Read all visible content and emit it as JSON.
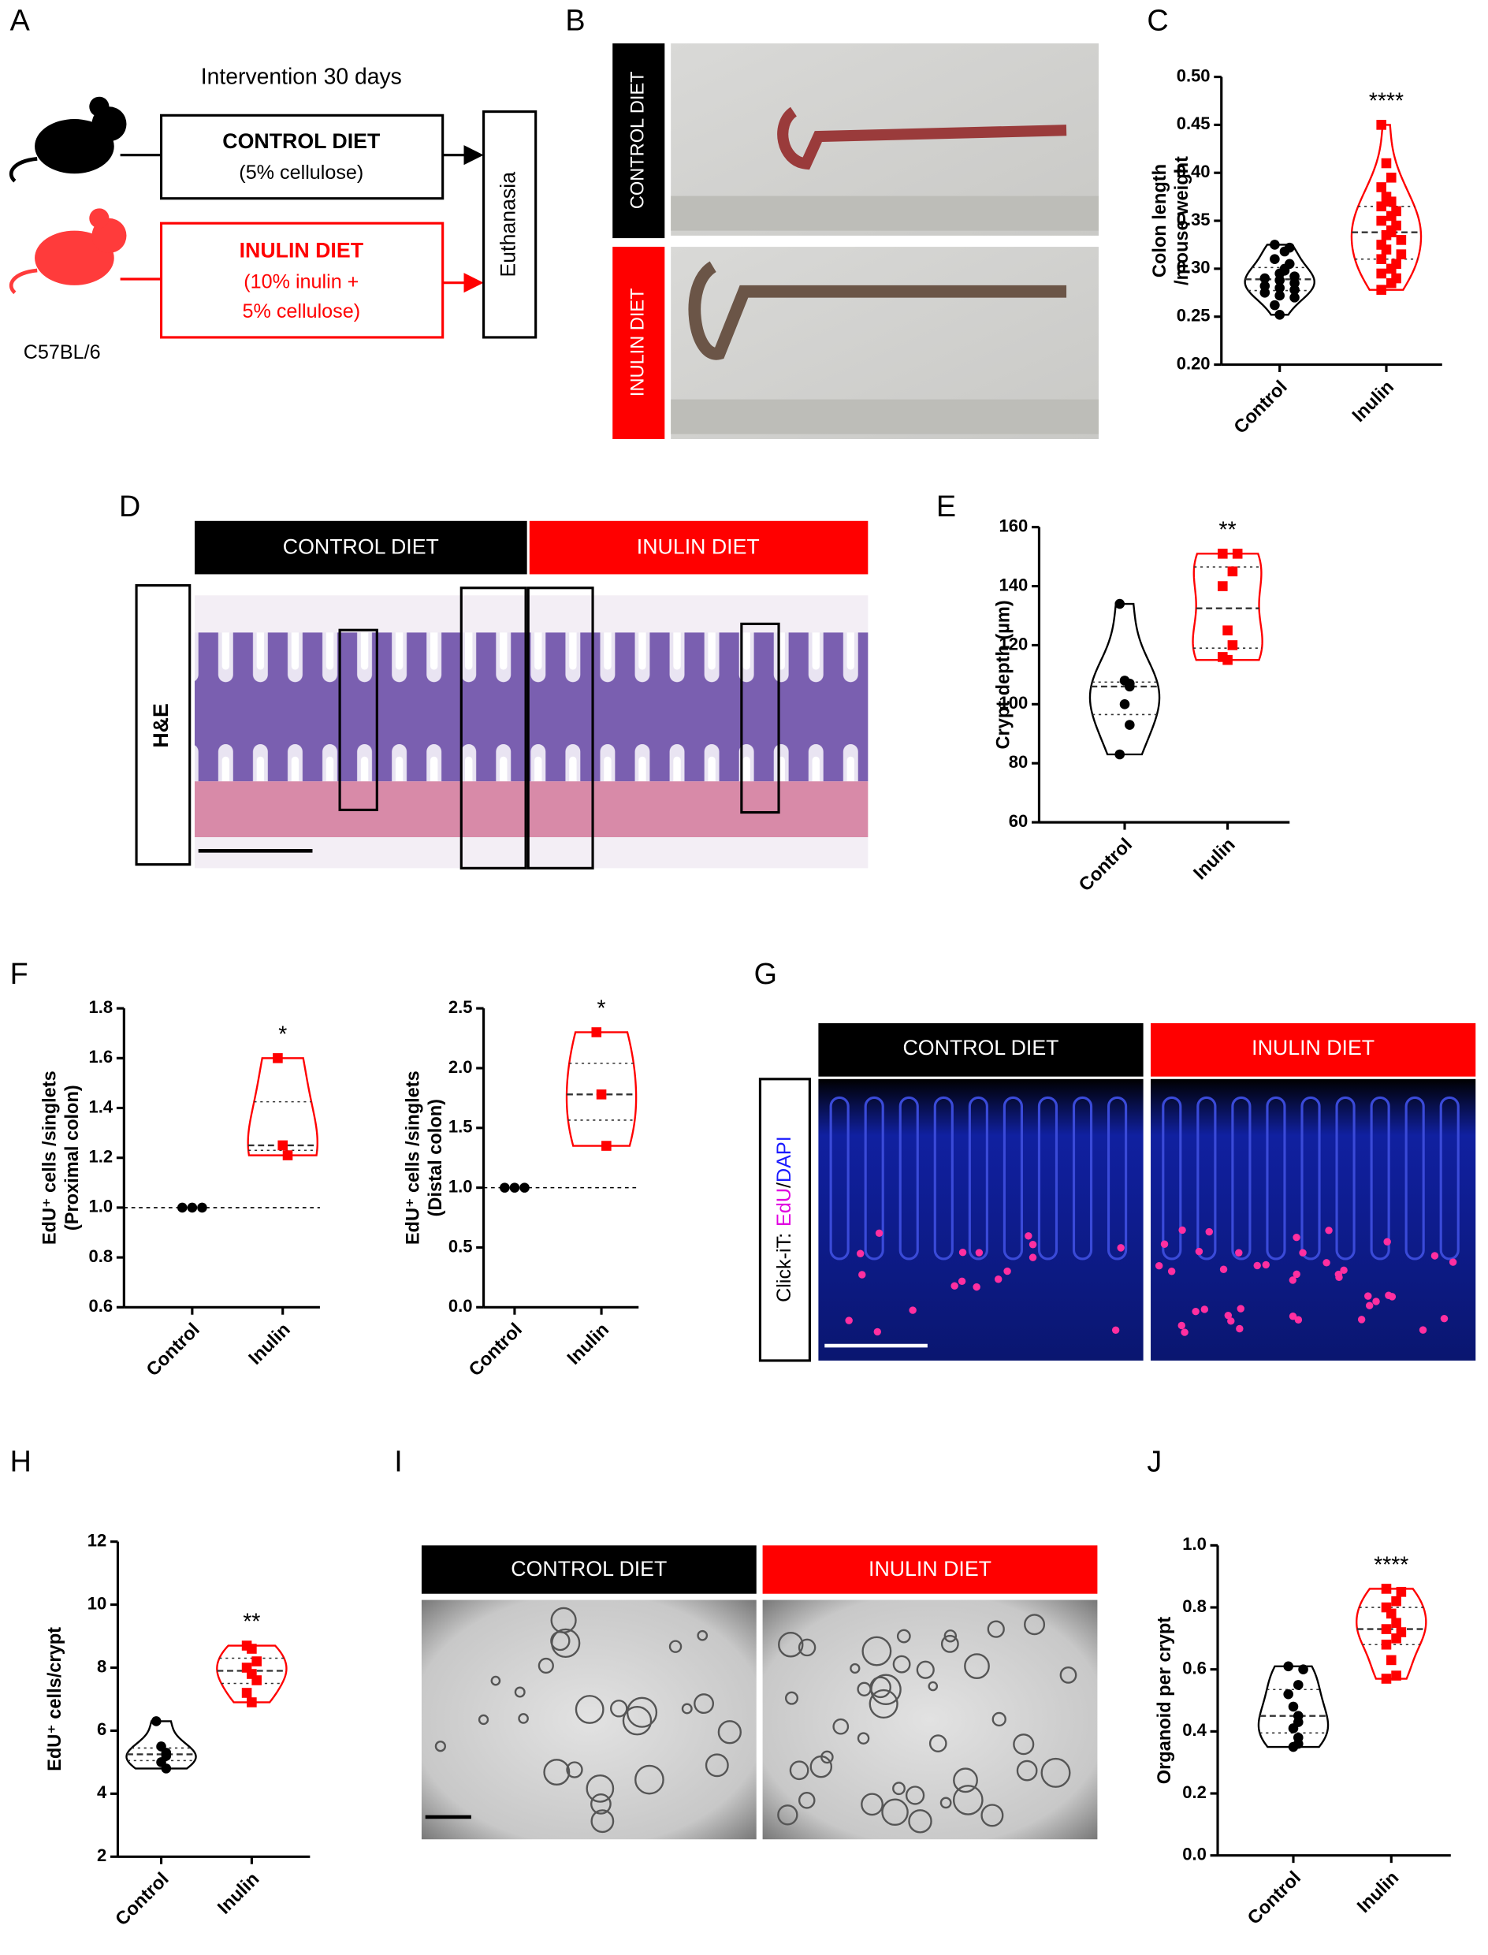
{
  "panel_labels": [
    "A",
    "B",
    "C",
    "D",
    "E",
    "F",
    "G",
    "H",
    "I",
    "J"
  ],
  "panel_a": {
    "header": "Intervention 30 days",
    "control_box": {
      "title": "CONTROL DIET",
      "lines": [
        "(5% cellulose)"
      ]
    },
    "inulin_box": {
      "title": "INULIN DIET",
      "lines": [
        "(10% inulin +",
        "5% cellulose)"
      ]
    },
    "endpoint": "Euthanasia",
    "strain": "C57BL/6"
  },
  "panel_b": {
    "labels": [
      "CONTROL DIET",
      "INULIN DIET"
    ]
  },
  "panel_d": {
    "headers": [
      "CONTROL DIET",
      "INULIN DIET"
    ],
    "stain": "H&E"
  },
  "panel_g": {
    "headers": [
      "CONTROL DIET",
      "INULIN DIET"
    ],
    "stain": [
      "Click-iT:",
      "EdU",
      "/",
      "DAPI"
    ]
  },
  "panel_i": {
    "headers": [
      "CONTROL DIET",
      "INULIN DIET"
    ]
  },
  "chart_data": [
    {
      "type": "violin",
      "y_label": [
        "Colon length",
        "/mouse weight"
      ],
      "categories": [
        "Control",
        "Inulin"
      ],
      "colors": [
        "#000000",
        "#ff0000"
      ],
      "markers": [
        "circle",
        "square"
      ],
      "values": [
        [
          0.325,
          0.322,
          0.318,
          0.31,
          0.305,
          0.3,
          0.298,
          0.295,
          0.292,
          0.29,
          0.288,
          0.285,
          0.282,
          0.28,
          0.278,
          0.275,
          0.272,
          0.27,
          0.262,
          0.252
        ],
        [
          0.45,
          0.41,
          0.395,
          0.385,
          0.375,
          0.37,
          0.365,
          0.36,
          0.355,
          0.35,
          0.345,
          0.34,
          0.338,
          0.335,
          0.33,
          0.325,
          0.32,
          0.315,
          0.31,
          0.305,
          0.3,
          0.295,
          0.29,
          0.285,
          0.278
        ]
      ],
      "annotation": "****",
      "ylim": [
        0.2,
        0.5
      ],
      "yticks": [
        {
          "value": 0.2,
          "label": "0.20"
        },
        0.25,
        {
          "value": 0.3,
          "label": "0.30"
        },
        0.35,
        {
          "value": 0.4,
          "label": "0.40"
        },
        0.45,
        {
          "value": 0.5,
          "label": "0.50"
        }
      ]
    },
    {
      "type": "violin",
      "y_label": [
        "Crypt depth (µm)"
      ],
      "categories": [
        "Control",
        "Inulin"
      ],
      "colors": [
        "#000000",
        "#ff0000"
      ],
      "markers": [
        "circle",
        "square"
      ],
      "values": [
        [
          134,
          108,
          107,
          106,
          100,
          93,
          83
        ],
        [
          151,
          151,
          145,
          140,
          125,
          120,
          116,
          115
        ]
      ],
      "annotation": "**",
      "ylim": [
        60,
        160
      ],
      "yticks": [
        60,
        80,
        100,
        120,
        140,
        160
      ]
    },
    {
      "type": "violin",
      "y_label": [
        "EdU⁺ cells /singlets",
        "(Proximal colon)"
      ],
      "categories": [
        "Control",
        "Inulin"
      ],
      "colors": [
        "#000000",
        "#ff0000"
      ],
      "markers": [
        "circle",
        "square"
      ],
      "values": [
        [
          1,
          1,
          1
        ],
        [
          1.6,
          1.25,
          1.21
        ]
      ],
      "annotation": "*",
      "reference_line": 1,
      "ylim": [
        0.6,
        1.8
      ],
      "yticks": [
        0.6,
        0.8,
        {
          "value": 1,
          "label": "1.0"
        },
        1.2,
        1.4,
        1.6,
        1.8
      ]
    },
    {
      "type": "violin",
      "y_label": [
        "EdU⁺ cells /singlets",
        "(Distal colon)"
      ],
      "categories": [
        "Control",
        "Inulin"
      ],
      "colors": [
        "#000000",
        "#ff0000"
      ],
      "markers": [
        "circle",
        "square"
      ],
      "values": [
        [
          1,
          1,
          1
        ],
        [
          2.3,
          1.78,
          1.35
        ]
      ],
      "annotation": "*",
      "reference_line": 1,
      "ylim": [
        0,
        2.5
      ],
      "yticks": [
        {
          "value": 0,
          "label": "0.0"
        },
        0.5,
        {
          "value": 1,
          "label": "1.0"
        },
        1.5,
        {
          "value": 2,
          "label": "2.0"
        },
        2.5
      ]
    },
    {
      "type": "violin",
      "y_label": [
        "EdU⁺ cells/crypt"
      ],
      "categories": [
        "Control",
        "Inulin"
      ],
      "colors": [
        "#000000",
        "#ff0000"
      ],
      "markers": [
        "circle",
        "square"
      ],
      "values": [
        [
          6.3,
          5.5,
          5.3,
          5.2,
          5.0,
          4.8
        ],
        [
          8.7,
          8.6,
          8.2,
          8.0,
          7.8,
          7.6,
          7.2,
          6.9
        ]
      ],
      "annotation": "**",
      "ylim": [
        2,
        12
      ],
      "yticks": [
        2,
        4,
        6,
        8,
        10,
        12
      ]
    },
    {
      "type": "violin",
      "y_label": [
        "Organoid per crypt"
      ],
      "categories": [
        "Control",
        "Inulin"
      ],
      "colors": [
        "#000000",
        "#ff0000"
      ],
      "markers": [
        "circle",
        "square"
      ],
      "values": [
        [
          0.61,
          0.6,
          0.55,
          0.52,
          0.48,
          0.45,
          0.43,
          0.41,
          0.38,
          0.36,
          0.35
        ],
        [
          0.86,
          0.85,
          0.82,
          0.8,
          0.78,
          0.75,
          0.73,
          0.72,
          0.7,
          0.68,
          0.63,
          0.58,
          0.57
        ]
      ],
      "annotation": "****",
      "ylim": [
        0,
        1
      ],
      "yticks": [
        {
          "value": 0,
          "label": "0.0"
        },
        0.2,
        0.4,
        0.6,
        0.8,
        {
          "value": 1,
          "label": "1.0"
        }
      ]
    }
  ]
}
